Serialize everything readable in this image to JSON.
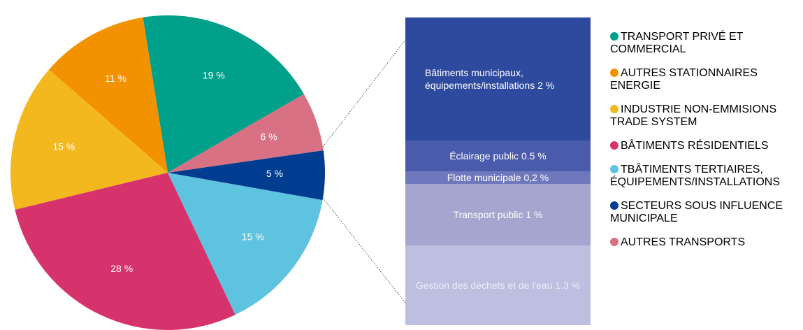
{
  "chart_data": [
    {
      "type": "pie",
      "categories": [
        "TRANSPORT PRIVÉ ET COMMERCIAL",
        "AUTRES STATIONNAIRES ENERGIE",
        "INDUSTRIE NON-EMMISIONS TRADE SYSTEM",
        "BÂTIMENTS RÉSIDENTIELS",
        "TBÂTIMENTS TERTIAIRES, ÉQUIPEMENTS/INSTALLATIONS",
        "SECTEURS SOUS INFLUENCE MUNICIPALE",
        "AUTRES TRANSPORTS"
      ],
      "values": [
        19,
        11,
        15,
        28,
        15,
        5,
        6
      ],
      "value_labels": [
        "19 %",
        "11 %",
        "15 %",
        "28 %",
        "15 %",
        "5 %",
        "6 %"
      ],
      "colors": [
        "#00a08a",
        "#f39200",
        "#f2b81e",
        "#d6336c",
        "#5ec3de",
        "#003c8f",
        "#d97185"
      ]
    },
    {
      "type": "stacked-column",
      "categories": [
        "Bâtiments municipaux, équipements/installations",
        "Éclairage public",
        "Flotte municipale",
        "Transport public",
        "Gestion des déchets et de l'eau"
      ],
      "values": [
        2,
        0.5,
        0.2,
        1,
        1.3
      ],
      "value_labels": [
        "2 %",
        "0.5 %",
        "0,2 %",
        "1 %",
        "1.3 %"
      ],
      "colors": [
        "#2e4a9e",
        "#4a5bab",
        "#6f78bd",
        "#a4a6cf",
        "#bcbfe0"
      ]
    }
  ]
}
